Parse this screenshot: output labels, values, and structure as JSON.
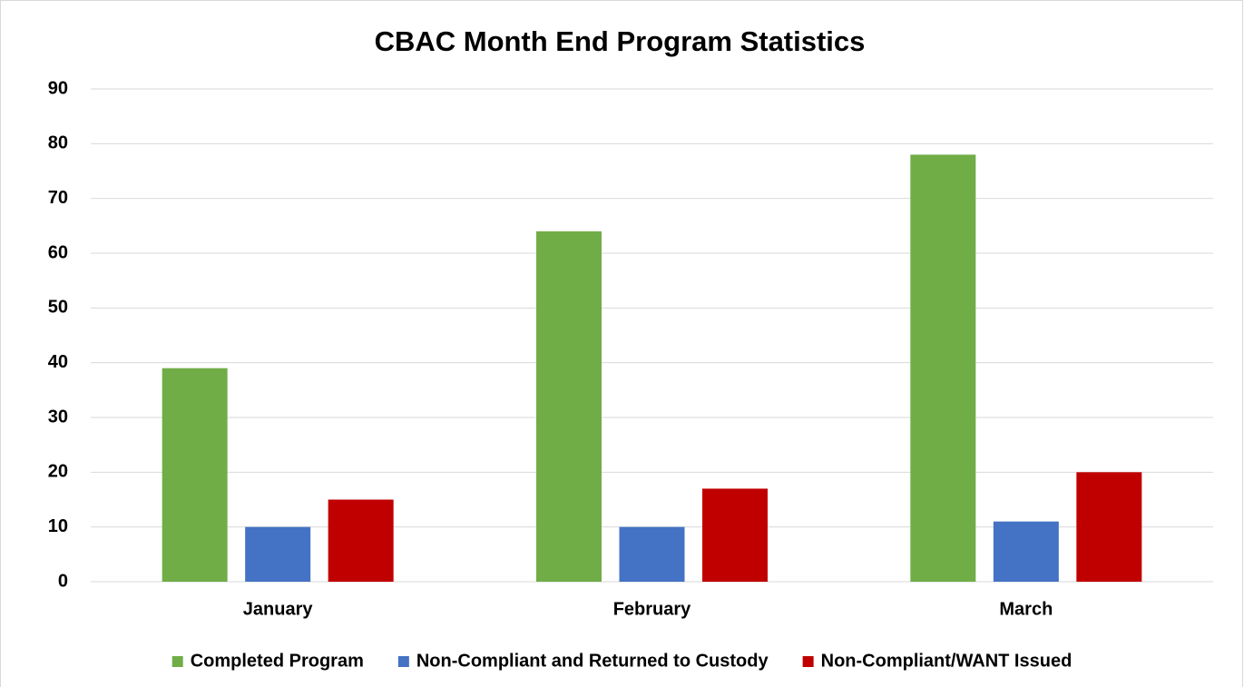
{
  "chart_data": {
    "type": "bar",
    "title": "CBAC Month End Program Statistics",
    "categories": [
      "January",
      "February",
      "March"
    ],
    "series": [
      {
        "name": "Completed Program",
        "color": "#70ad47",
        "values": [
          39,
          64,
          78
        ]
      },
      {
        "name": "Non-Compliant and Returned to Custody",
        "color": "#4472c4",
        "values": [
          10,
          10,
          11
        ]
      },
      {
        "name": "Non-Compliant/WANT Issued",
        "color": "#c00000",
        "values": [
          15,
          17,
          20
        ]
      }
    ],
    "ylim": [
      0,
      90
    ],
    "yticks": [
      0,
      10,
      20,
      30,
      40,
      50,
      60,
      70,
      80,
      90
    ],
    "grid": true,
    "legend": "bottom"
  }
}
